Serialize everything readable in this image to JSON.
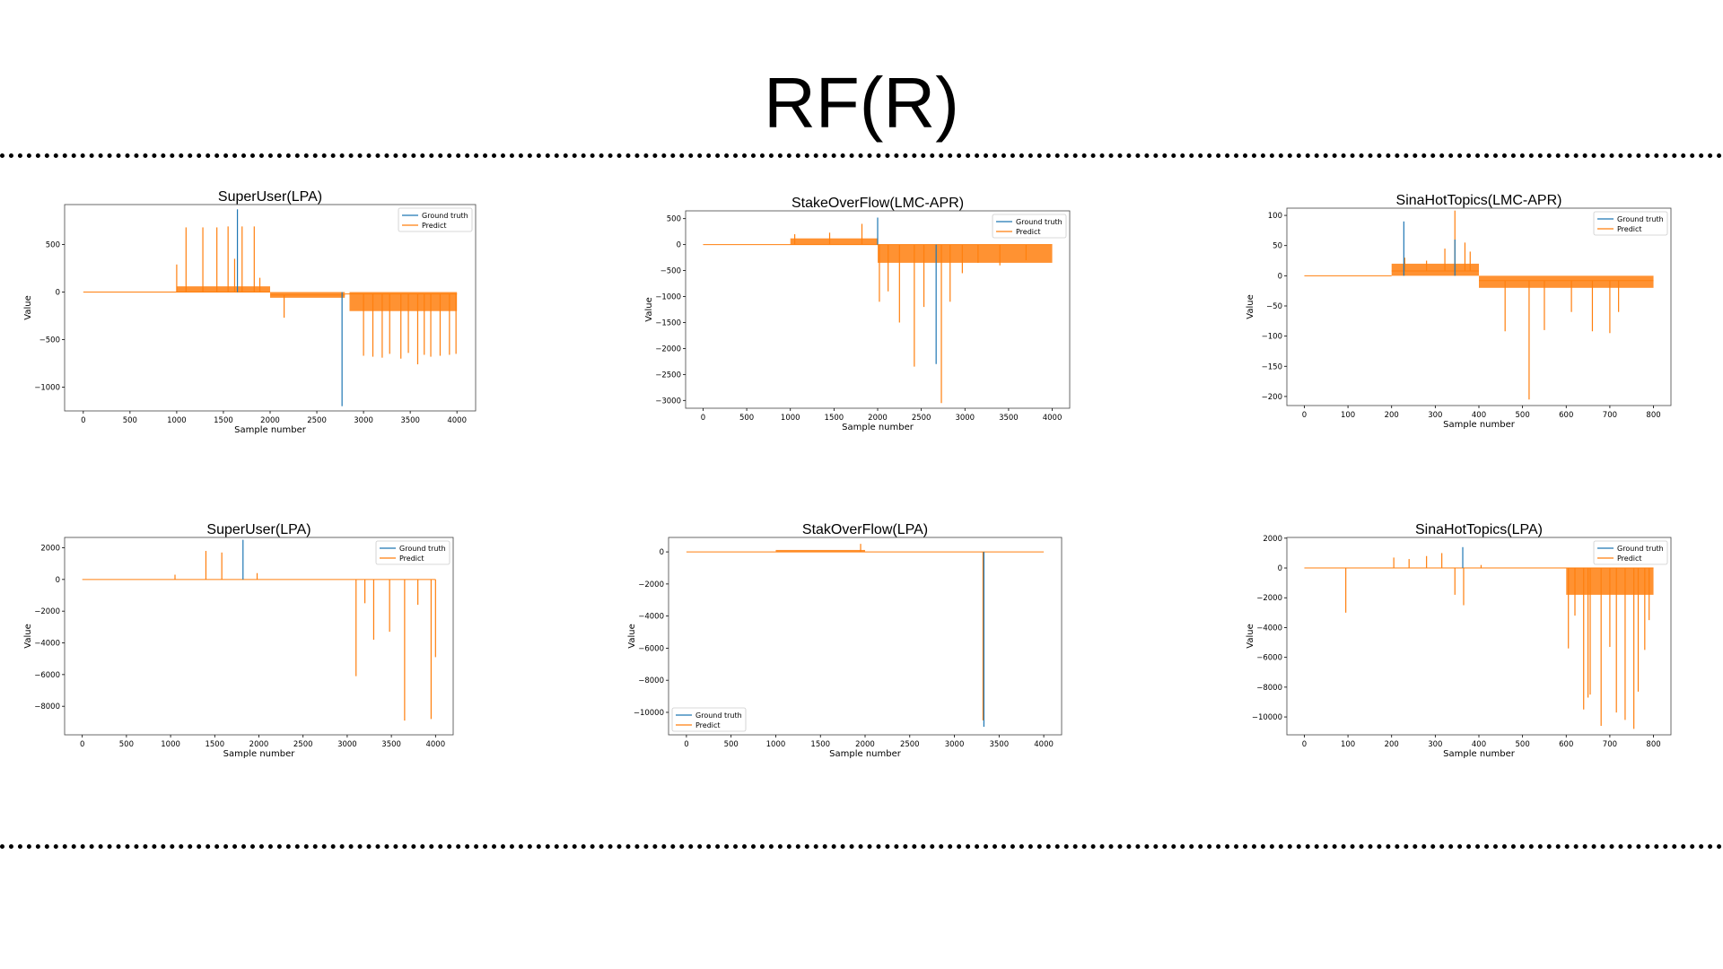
{
  "page": {
    "title": "RF(R)"
  },
  "colors": {
    "ground_truth": "#1f77b4",
    "predict": "#ff7f0e"
  },
  "chart_data": [
    {
      "type": "line",
      "title": "SuperUser(LPA)",
      "xlabel": "Sample number",
      "ylabel": "Value",
      "xlim": [
        -200,
        4200
      ],
      "ylim": [
        -1250,
        920
      ],
      "xticks": [
        0,
        500,
        1000,
        1500,
        2000,
        2500,
        3000,
        3500,
        4000
      ],
      "yticks": [
        500,
        0,
        -500,
        -1000
      ],
      "legend": "top-right",
      "series": [
        {
          "name": "Ground truth",
          "spikes": [
            [
              1650,
              870
            ],
            [
              2770,
              -1200
            ]
          ]
        },
        {
          "name": "Predict",
          "segments": [
            [
              0,
              2000,
              0
            ],
            [
              2000,
              2800,
              -30
            ],
            [
              2800,
              4000,
              -20
            ]
          ],
          "bands": [
            [
              1000,
              2000,
              0,
              60
            ],
            [
              2000,
              2800,
              -60,
              0
            ],
            [
              2850,
              4000,
              -200,
              0
            ]
          ],
          "spikes": [
            [
              1000,
              290
            ],
            [
              1100,
              680
            ],
            [
              1280,
              680
            ],
            [
              1430,
              680
            ],
            [
              1550,
              690
            ],
            [
              1620,
              350
            ],
            [
              1700,
              690
            ],
            [
              1830,
              690
            ],
            [
              1890,
              150
            ],
            [
              2150,
              -270
            ],
            [
              3000,
              -670
            ],
            [
              3100,
              -680
            ],
            [
              3200,
              -690
            ],
            [
              3280,
              -650
            ],
            [
              3400,
              -700
            ],
            [
              3480,
              -640
            ],
            [
              3580,
              -760
            ],
            [
              3650,
              -660
            ],
            [
              3720,
              -680
            ],
            [
              3820,
              -670
            ],
            [
              3920,
              -660
            ],
            [
              3990,
              -650
            ]
          ]
        }
      ]
    },
    {
      "type": "line",
      "title": "StakeOverFlow(LMC-APR)",
      "xlabel": "Sample number",
      "ylabel": "Value",
      "xlim": [
        -200,
        4200
      ],
      "ylim": [
        -3150,
        650
      ],
      "xticks": [
        0,
        500,
        1000,
        1500,
        2000,
        2500,
        3000,
        3500,
        4000
      ],
      "yticks": [
        500,
        0,
        -500,
        -1000,
        -1500,
        -2000,
        -2500,
        -3000
      ],
      "legend": "top-right",
      "series": [
        {
          "name": "Ground truth",
          "spikes": [
            [
              2000,
              520
            ],
            [
              2670,
              -2300
            ]
          ]
        },
        {
          "name": "Predict",
          "segments": [
            [
              0,
              2000,
              0
            ],
            [
              2000,
              4000,
              0
            ]
          ],
          "bands": [
            [
              1000,
              2000,
              0,
              120
            ],
            [
              2000,
              4000,
              -350,
              0
            ]
          ],
          "spikes": [
            [
              1050,
              200
            ],
            [
              1450,
              230
            ],
            [
              1820,
              400
            ],
            [
              2020,
              -1100
            ],
            [
              2120,
              -900
            ],
            [
              2250,
              -1500
            ],
            [
              2420,
              -2350
            ],
            [
              2530,
              -1200
            ],
            [
              2730,
              -3050
            ],
            [
              2830,
              -1100
            ],
            [
              2970,
              -550
            ],
            [
              3150,
              -350
            ],
            [
              3400,
              -400
            ],
            [
              3700,
              -300
            ]
          ]
        }
      ]
    },
    {
      "type": "line",
      "title": "SinaHotTopics(LMC-APR)",
      "xlabel": "Sample number",
      "ylabel": "Value",
      "xlim": [
        -40,
        840
      ],
      "ylim": [
        -215,
        112
      ],
      "xticks": [
        0,
        100,
        200,
        300,
        400,
        500,
        600,
        700,
        800
      ],
      "yticks": [
        100,
        50,
        0,
        -50,
        -100,
        -150,
        -200
      ],
      "legend": "top-right",
      "series": [
        {
          "name": "Ground truth",
          "spikes": [
            [
              228,
              90
            ],
            [
              345,
              60
            ]
          ]
        },
        {
          "name": "Predict",
          "segments": [
            [
              0,
              200,
              0
            ],
            [
              200,
              400,
              8
            ],
            [
              400,
              800,
              -8
            ]
          ],
          "bands": [
            [
              200,
              400,
              0,
              20
            ],
            [
              400,
              800,
              -20,
              0
            ]
          ],
          "spikes": [
            [
              230,
              30
            ],
            [
              280,
              25
            ],
            [
              322,
              45
            ],
            [
              345,
              108
            ],
            [
              368,
              55
            ],
            [
              380,
              40
            ],
            [
              460,
              -92
            ],
            [
              515,
              -205
            ],
            [
              550,
              -90
            ],
            [
              612,
              -60
            ],
            [
              660,
              -92
            ],
            [
              700,
              -95
            ],
            [
              720,
              -60
            ]
          ]
        }
      ]
    },
    {
      "type": "line",
      "title": "SuperUser(LPA)",
      "xlabel": "Sample number",
      "ylabel": "Value",
      "xlim": [
        -200,
        4200
      ],
      "ylim": [
        -9800,
        2650
      ],
      "xticks": [
        0,
        500,
        1000,
        1500,
        2000,
        2500,
        3000,
        3500,
        4000
      ],
      "yticks": [
        2000,
        0,
        -2000,
        -4000,
        -6000,
        -8000
      ],
      "legend": "top-right",
      "series": [
        {
          "name": "Ground truth",
          "spikes": [
            [
              1820,
              2500
            ]
          ]
        },
        {
          "name": "Predict",
          "segments": [
            [
              0,
              4000,
              0
            ]
          ],
          "bands": [],
          "spikes": [
            [
              1050,
              300
            ],
            [
              1400,
              1800
            ],
            [
              1580,
              1700
            ],
            [
              1980,
              400
            ],
            [
              3100,
              -6100
            ],
            [
              3200,
              -1500
            ],
            [
              3300,
              -3800
            ],
            [
              3480,
              -3300
            ],
            [
              3650,
              -8900
            ],
            [
              3800,
              -1600
            ],
            [
              3950,
              -8800
            ],
            [
              4000,
              -4900
            ]
          ]
        }
      ]
    },
    {
      "type": "line",
      "title": "StakOverFlow(LPA)",
      "xlabel": "Sample number",
      "ylabel": "Value",
      "xlim": [
        -200,
        4200
      ],
      "ylim": [
        -11400,
        900
      ],
      "xticks": [
        0,
        500,
        1000,
        1500,
        2000,
        2500,
        3000,
        3500,
        4000
      ],
      "yticks": [
        0,
        -2000,
        -4000,
        -6000,
        -8000,
        -10000
      ],
      "legend": "bottom-left",
      "series": [
        {
          "name": "Ground truth",
          "spikes": [
            [
              3330,
              -10900
            ]
          ]
        },
        {
          "name": "Predict",
          "segments": [
            [
              0,
              4000,
              0
            ]
          ],
          "bands": [
            [
              1000,
              2000,
              0,
              120
            ]
          ],
          "spikes": [
            [
              1950,
              500
            ],
            [
              3320,
              -10500
            ]
          ]
        }
      ]
    },
    {
      "type": "line",
      "title": "SinaHotTopics(LPA)",
      "xlabel": "Sample number",
      "ylabel": "Value",
      "xlim": [
        -40,
        840
      ],
      "ylim": [
        -11200,
        2050
      ],
      "xticks": [
        0,
        100,
        200,
        300,
        400,
        500,
        600,
        700,
        800
      ],
      "yticks": [
        2000,
        0,
        -2000,
        -4000,
        -6000,
        -8000,
        -10000
      ],
      "legend": "top-right",
      "series": [
        {
          "name": "Ground truth",
          "spikes": [
            [
              363,
              1400
            ]
          ]
        },
        {
          "name": "Predict",
          "segments": [
            [
              0,
              800,
              0
            ]
          ],
          "bands": [
            [
              600,
              800,
              -1800,
              0
            ]
          ],
          "spikes": [
            [
              95,
              -3000
            ],
            [
              205,
              700
            ],
            [
              240,
              600
            ],
            [
              280,
              800
            ],
            [
              315,
              1000
            ],
            [
              345,
              -1800
            ],
            [
              365,
              -2500
            ],
            [
              405,
              200
            ],
            [
              605,
              -5400
            ],
            [
              620,
              -3200
            ],
            [
              640,
              -9500
            ],
            [
              650,
              -8700
            ],
            [
              655,
              -8500
            ],
            [
              680,
              -10600
            ],
            [
              700,
              -5300
            ],
            [
              715,
              -9700
            ],
            [
              735,
              -10200
            ],
            [
              755,
              -10800
            ],
            [
              765,
              -8300
            ],
            [
              780,
              -5500
            ],
            [
              790,
              -3500
            ]
          ]
        }
      ]
    }
  ]
}
